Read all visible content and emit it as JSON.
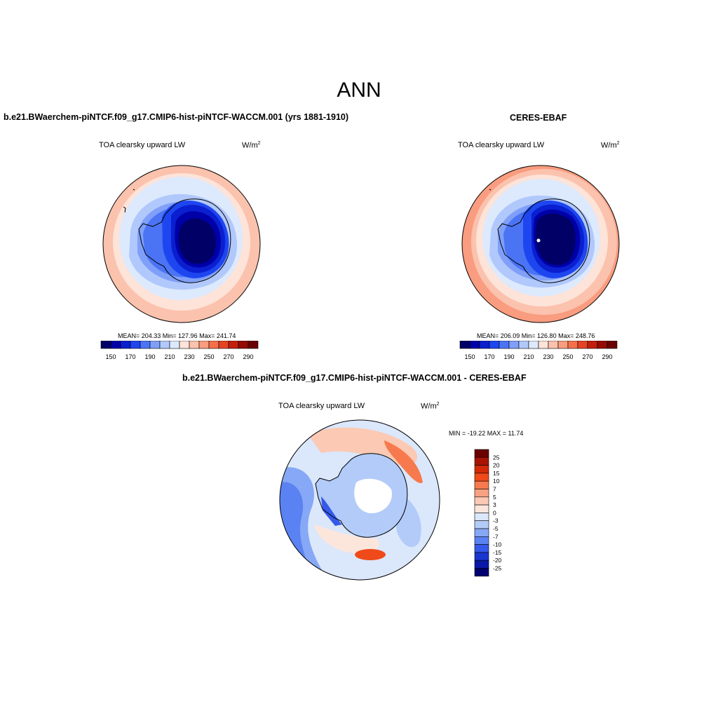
{
  "figure": {
    "season": "ANN"
  },
  "model_panel": {
    "title": "b.e21.BWaerchem-piNTCF.f09_g17.CMIP6-hist-piNTCF-WACCM.001 (yrs 1881-1910)",
    "variable": "TOA clearsky upward LW",
    "units_base": "W/m",
    "units_exp": "2",
    "stats": "MEAN= 204.33  Min= 127.96  Max= 241.74"
  },
  "obs_panel": {
    "title": "CERES-EBAF",
    "variable": "TOA clearsky upward LW",
    "units_base": "W/m",
    "units_exp": "2",
    "stats": "MEAN= 206.09  Min= 126.80  Max= 248.76"
  },
  "diff_panel": {
    "title": "b.e21.BWaerchem-piNTCF.f09_g17.CMIP6-hist-piNTCF-WACCM.001 - CERES-EBAF",
    "variable": "TOA clearsky upward LW",
    "units_base": "W/m",
    "units_exp": "2",
    "stats": "MIN = -19.22 MAX =  11.74"
  },
  "colorbars": {
    "absolute": {
      "colors": [
        "#000066",
        "#0000a8",
        "#0a1fd0",
        "#1e46f0",
        "#4b74f5",
        "#7f9ff8",
        "#b0c8fb",
        "#dde9fd",
        "#fde3d8",
        "#fbc2ad",
        "#f99c7f",
        "#f4704a",
        "#e54424",
        "#c41f0d",
        "#960a04",
        "#6a0000"
      ],
      "labels": [
        "150",
        "170",
        "190",
        "210",
        "230",
        "250",
        "270",
        "290"
      ]
    },
    "difference": {
      "colors": [
        "#6a0000",
        "#a81404",
        "#d22a08",
        "#f04a1a",
        "#f77a4e",
        "#f9a283",
        "#fbc9b4",
        "#fce6dc",
        "#dbe7fb",
        "#b2cbf9",
        "#86a8f6",
        "#5b82f2",
        "#3559eb",
        "#1a35d0",
        "#0a18a8",
        "#000070"
      ],
      "labels": [
        "25",
        "20",
        "15",
        "10",
        "7",
        "5",
        "3",
        "0",
        "-3",
        "-5",
        "-7",
        "-10",
        "-15",
        "-20",
        "-25"
      ]
    }
  }
}
